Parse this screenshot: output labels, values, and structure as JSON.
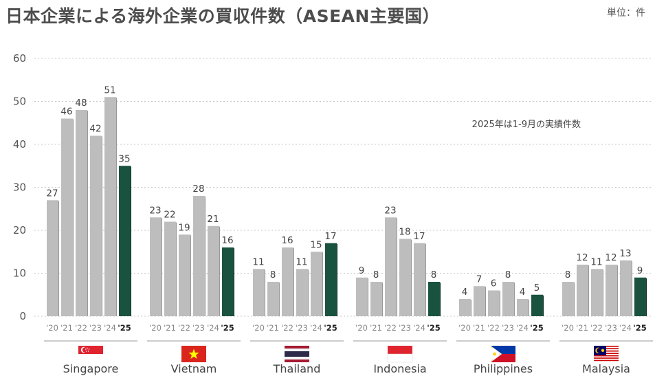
{
  "title": "日本企業による海外企業の買収件数（ASEAN主要国）",
  "unit_label": "単位：件",
  "chart_data": {
    "type": "bar",
    "title": "日本企業による海外企業の買収件数（ASEAN主要国）",
    "ylim": [
      0,
      60
    ],
    "yticks": [
      "0",
      "10",
      "20",
      "30",
      "40",
      "50",
      "60"
    ],
    "grid": true,
    "note": "2025年は1-9月の実績件数",
    "year_labels": [
      "'20",
      "'21",
      "'22",
      "'23",
      "'24",
      "'25"
    ],
    "groups": [
      {
        "country": "Singapore",
        "flag": "singapore",
        "values": [
          27,
          46,
          48,
          42,
          51,
          35
        ]
      },
      {
        "country": "Vietnam",
        "flag": "vietnam",
        "values": [
          23,
          22,
          19,
          28,
          21,
          16
        ]
      },
      {
        "country": "Thailand",
        "flag": "thailand",
        "values": [
          11,
          8,
          16,
          11,
          15,
          17
        ]
      },
      {
        "country": "Indonesia",
        "flag": "indonesia",
        "values": [
          9,
          8,
          23,
          18,
          17,
          8
        ]
      },
      {
        "country": "Philippines",
        "flag": "philippines",
        "values": [
          4,
          7,
          6,
          8,
          4,
          5
        ]
      },
      {
        "country": "Malaysia",
        "flag": "malaysia",
        "values": [
          8,
          12,
          11,
          12,
          13,
          9
        ]
      }
    ],
    "colors": {
      "past": "#bdbdbd",
      "past_shadow": "#999999",
      "current": "#1a5240",
      "current_shadow": "#0e3024"
    }
  }
}
